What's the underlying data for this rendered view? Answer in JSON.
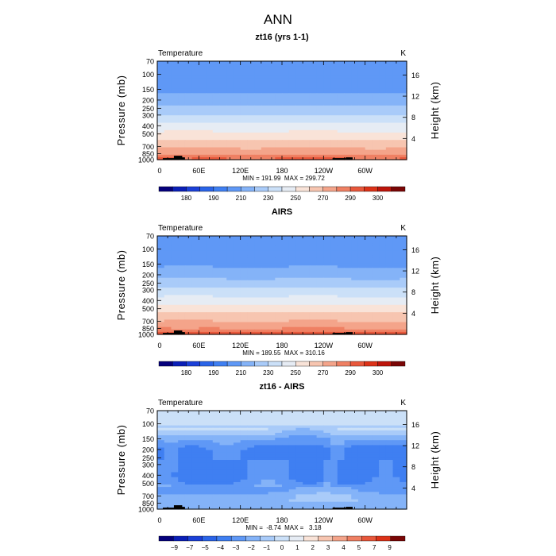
{
  "figure_title": "ANN",
  "chart_data": [
    {
      "type": "heatmap",
      "title": "zt16 (yrs 1-1)",
      "variable": "Temperature",
      "units": "K",
      "ylabel": "Pressure (mb)",
      "ylabel_right": "Height (km)",
      "x_ticks": [
        "0",
        "60E",
        "120E",
        "180",
        "120W",
        "60W"
      ],
      "x_range": [
        0,
        360
      ],
      "p_ticks": [
        70,
        100,
        150,
        200,
        250,
        300,
        400,
        500,
        700,
        850,
        1000
      ],
      "p_range": [
        1000,
        70
      ],
      "height_ticks": [
        4,
        8,
        12,
        16
      ],
      "stats": "MIN = 191.99  MAX = 299.72",
      "colorbar_labels": [
        "180",
        "190",
        "210",
        "230",
        "250",
        "270",
        "290",
        "300"
      ],
      "colorbar_colors": [
        "#05007c",
        "#0a1fb7",
        "#1b40d8",
        "#2a64e8",
        "#3f7ff2",
        "#5f98f6",
        "#84b3f8",
        "#a9cbf9",
        "#cbe0f8",
        "#e6ecf4",
        "#f9e3d8",
        "#f7c5b0",
        "#f4a48a",
        "#ef8063",
        "#e8573b",
        "#dc3218",
        "#bd150b",
        "#7a0606"
      ],
      "profile_p": [
        70,
        100,
        150,
        200,
        250,
        300,
        400,
        500,
        600,
        700,
        850,
        925,
        1000
      ],
      "profile_values": [
        203,
        204,
        208,
        215,
        222,
        230,
        243,
        253,
        261,
        268,
        278,
        283,
        287
      ],
      "bands": [
        [
          170,
          180
        ],
        [
          180,
          185
        ],
        [
          185,
          190
        ],
        [
          190,
          195
        ],
        [
          195,
          200
        ],
        [
          200,
          210
        ],
        [
          210,
          220
        ],
        [
          220,
          230
        ],
        [
          230,
          240
        ],
        [
          240,
          250
        ],
        [
          250,
          260
        ],
        [
          260,
          270
        ],
        [
          270,
          280
        ],
        [
          280,
          285
        ],
        [
          285,
          290
        ],
        [
          290,
          295
        ],
        [
          295,
          300
        ],
        [
          300,
          310
        ]
      ]
    },
    {
      "type": "heatmap",
      "title": "AIRS",
      "variable": "Temperature",
      "units": "K",
      "ylabel": "Pressure (mb)",
      "ylabel_right": "Height (km)",
      "x_ticks": [
        "0",
        "60E",
        "120E",
        "180",
        "120W",
        "60W"
      ],
      "x_range": [
        0,
        360
      ],
      "p_ticks": [
        70,
        100,
        150,
        200,
        250,
        300,
        400,
        500,
        700,
        850,
        1000
      ],
      "p_range": [
        1000,
        70
      ],
      "height_ticks": [
        4,
        8,
        12,
        16
      ],
      "stats": "MIN = 189.55  MAX = 310.16",
      "colorbar_labels": [
        "180",
        "190",
        "210",
        "230",
        "250",
        "270",
        "290",
        "300"
      ],
      "colorbar_colors": [
        "#05007c",
        "#0a1fb7",
        "#1b40d8",
        "#2a64e8",
        "#3f7ff2",
        "#5f98f6",
        "#84b3f8",
        "#a9cbf9",
        "#cbe0f8",
        "#e6ecf4",
        "#f9e3d8",
        "#f7c5b0",
        "#f4a48a",
        "#ef8063",
        "#e8573b",
        "#dc3218",
        "#bd150b",
        "#7a0606"
      ],
      "profile_p": [
        70,
        100,
        150,
        200,
        250,
        300,
        400,
        500,
        600,
        700,
        850,
        925,
        1000
      ],
      "profile_values": [
        205,
        203,
        208,
        216,
        224,
        232,
        245,
        255,
        263,
        270,
        280,
        285,
        289
      ],
      "bands": [
        [
          170,
          180
        ],
        [
          180,
          185
        ],
        [
          185,
          190
        ],
        [
          190,
          195
        ],
        [
          195,
          200
        ],
        [
          200,
          210
        ],
        [
          210,
          220
        ],
        [
          220,
          230
        ],
        [
          230,
          240
        ],
        [
          240,
          250
        ],
        [
          250,
          260
        ],
        [
          260,
          270
        ],
        [
          270,
          280
        ],
        [
          280,
          285
        ],
        [
          285,
          290
        ],
        [
          290,
          295
        ],
        [
          295,
          300
        ],
        [
          300,
          310
        ]
      ]
    },
    {
      "type": "heatmap",
      "title": "zt16 - AIRS",
      "variable": "Temperature",
      "units": "K",
      "ylabel": "Pressure (mb)",
      "ylabel_right": "Height (km)",
      "x_ticks": [
        "0",
        "60E",
        "120E",
        "180",
        "120W",
        "60W"
      ],
      "x_range": [
        0,
        360
      ],
      "p_ticks": [
        70,
        100,
        150,
        200,
        250,
        300,
        400,
        500,
        700,
        850,
        1000
      ],
      "p_range": [
        1000,
        70
      ],
      "height_ticks": [
        4,
        8,
        12,
        16
      ],
      "stats": "MIN =  -8.74  MAX =   3.18",
      "colorbar_labels": [
        "−9",
        "−7",
        "−5",
        "−4",
        "−3",
        "−2",
        "−1",
        "0",
        "1",
        "2",
        "3",
        "4",
        "5",
        "7",
        "9"
      ],
      "colorbar_colors": [
        "#05007c",
        "#0a1fb7",
        "#1b40d8",
        "#2a64e8",
        "#3f7ff2",
        "#5f98f6",
        "#84b3f8",
        "#a9cbf9",
        "#cbe0f8",
        "#e6ecf4",
        "#f9e3d8",
        "#f7c5b0",
        "#f4a48a",
        "#ef8063",
        "#e8573b",
        "#dc3218",
        "#7a0606"
      ],
      "profile_p": [
        70,
        100,
        150,
        200,
        250,
        300,
        400,
        500,
        600,
        700,
        850,
        925,
        1000
      ],
      "profile_values": [
        0.6,
        0.5,
        -2.2,
        -3.5,
        -3.6,
        -3.4,
        -3.6,
        -3.1,
        -2.6,
        -1.8,
        -1.5,
        -1.2,
        -2.2
      ],
      "bands": [
        [
          -10,
          -9
        ],
        [
          -9,
          -7
        ],
        [
          -7,
          -5
        ],
        [
          -5,
          -4
        ],
        [
          -4,
          -3
        ],
        [
          -3,
          -2
        ],
        [
          -2,
          -1
        ],
        [
          -1,
          0
        ],
        [
          0,
          1
        ],
        [
          1,
          2
        ],
        [
          2,
          3
        ],
        [
          3,
          4
        ],
        [
          4,
          5
        ],
        [
          5,
          7
        ],
        [
          7,
          9
        ],
        [
          9,
          10
        ],
        [
          10,
          12
        ]
      ]
    }
  ]
}
